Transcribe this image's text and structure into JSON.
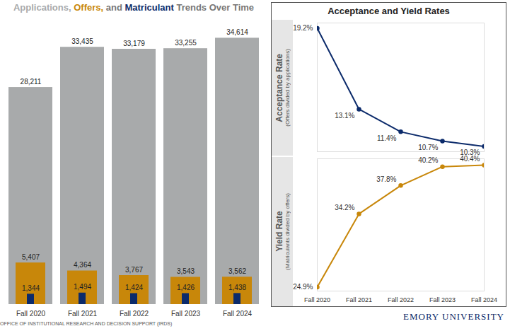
{
  "chart_data": [
    {
      "type": "bar",
      "title": "Applications, Offers, and Matriculant Trends Over Time",
      "categories": [
        "Fall 2020",
        "Fall 2021",
        "Fall 2022",
        "Fall 2023",
        "Fall 2024"
      ],
      "series": [
        {
          "name": "Applications",
          "color": "#a8aaab",
          "values": [
            28211,
            33435,
            33179,
            33255,
            34614
          ],
          "value_labels": [
            "28,211",
            "33,435",
            "33,179",
            "33,255",
            "34,614"
          ]
        },
        {
          "name": "Offers",
          "color": "#c8870a",
          "values": [
            5407,
            4364,
            3767,
            3543,
            3562
          ],
          "value_labels": [
            "5,407",
            "4,364",
            "3,767",
            "3,543",
            "3,562"
          ]
        },
        {
          "name": "Matriculant",
          "color": "#0c2b6b",
          "values": [
            1344,
            1494,
            1424,
            1426,
            1438
          ],
          "value_labels": [
            "1,344",
            "1,494",
            "1,424",
            "1,426",
            "1,438"
          ]
        }
      ],
      "ylim": [
        0,
        37500
      ],
      "data_labels": true,
      "tick_labels": "x",
      "caption": "OFFICE OF INSTITUTIONAL RESEARCH AND DECISION SUPPORT (IRDS)"
    },
    {
      "type": "line",
      "title": "Acceptance and Yield Rates",
      "ylabel": "Acceptance Rate",
      "ylabel_subtitle": "(Offers divided by applications)",
      "categories": [
        "Fall 2020",
        "Fall 2021",
        "Fall 2022",
        "Fall 2023",
        "Fall 2024"
      ],
      "values": [
        19.2,
        13.1,
        11.4,
        10.7,
        10.3
      ],
      "value_labels": [
        "19.2%",
        "13.1%",
        "11.4%",
        "10.7%",
        "10.3%"
      ],
      "color": "#0c2b6b",
      "marker": "circle",
      "ylim": [
        9.9,
        19.6
      ],
      "data_labels": true,
      "tick_labels": false
    },
    {
      "type": "line",
      "ylabel": "Yield Rate",
      "ylabel_subtitle": "(Matriculants divided by offers)",
      "categories": [
        "Fall 2020",
        "Fall 2021",
        "Fall 2022",
        "Fall 2023",
        "Fall 2024"
      ],
      "values": [
        24.9,
        34.2,
        37.8,
        40.2,
        40.4
      ],
      "value_labels": [
        "24.9%",
        "34.2%",
        "37.8%",
        "40.2%",
        "40.4%"
      ],
      "color": "#c8870a",
      "marker": "circle",
      "ylim": [
        24.4,
        41.2
      ],
      "data_labels": true,
      "tick_labels": "x",
      "caption": "EMORY UNIVERSITY"
    }
  ]
}
